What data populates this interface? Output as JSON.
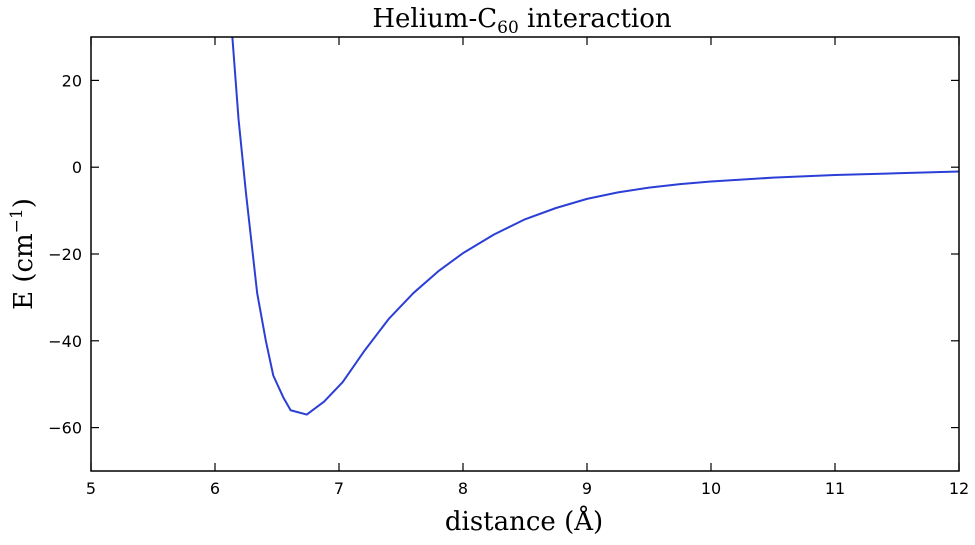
{
  "chart_data": {
    "type": "line",
    "title": {
      "prefix": "Helium-C",
      "subscript": "60",
      "suffix": " interaction"
    },
    "xlabel": "distance (Å)",
    "ylabel": {
      "prefix": "E  (cm",
      "superscript": "−1",
      "suffix": ")"
    },
    "xlim": [
      5,
      12
    ],
    "ylim": [
      -70,
      30
    ],
    "xticks": [
      5,
      6,
      7,
      8,
      9,
      10,
      11,
      12
    ],
    "yticks": [
      -60,
      -40,
      -20,
      0,
      20
    ],
    "xtick_labels": [
      "5",
      "6",
      "7",
      "8",
      "9",
      "10",
      "11",
      "12"
    ],
    "ytick_labels": [
      "−60",
      "−40",
      "−20",
      "0",
      "20"
    ],
    "grid": false,
    "series": [
      {
        "color": "#2b3fd6",
        "x": [
          6.14,
          6.19,
          6.25,
          6.34,
          6.41,
          6.47,
          6.55,
          6.61,
          6.74,
          6.88,
          7.03,
          7.2,
          7.4,
          7.6,
          7.8,
          8.0,
          8.25,
          8.5,
          8.75,
          9.0,
          9.25,
          9.5,
          9.75,
          10.0,
          10.5,
          11.0,
          11.5,
          12.0
        ],
        "y": [
          30,
          11,
          -6,
          -29,
          -40,
          -48,
          -53,
          -56,
          -57,
          -54,
          -49.5,
          -42.5,
          -35,
          -29,
          -24,
          -19.8,
          -15.5,
          -12,
          -9.4,
          -7.3,
          -5.8,
          -4.7,
          -3.9,
          -3.3,
          -2.4,
          -1.8,
          -1.4,
          -1.0
        ]
      }
    ]
  }
}
